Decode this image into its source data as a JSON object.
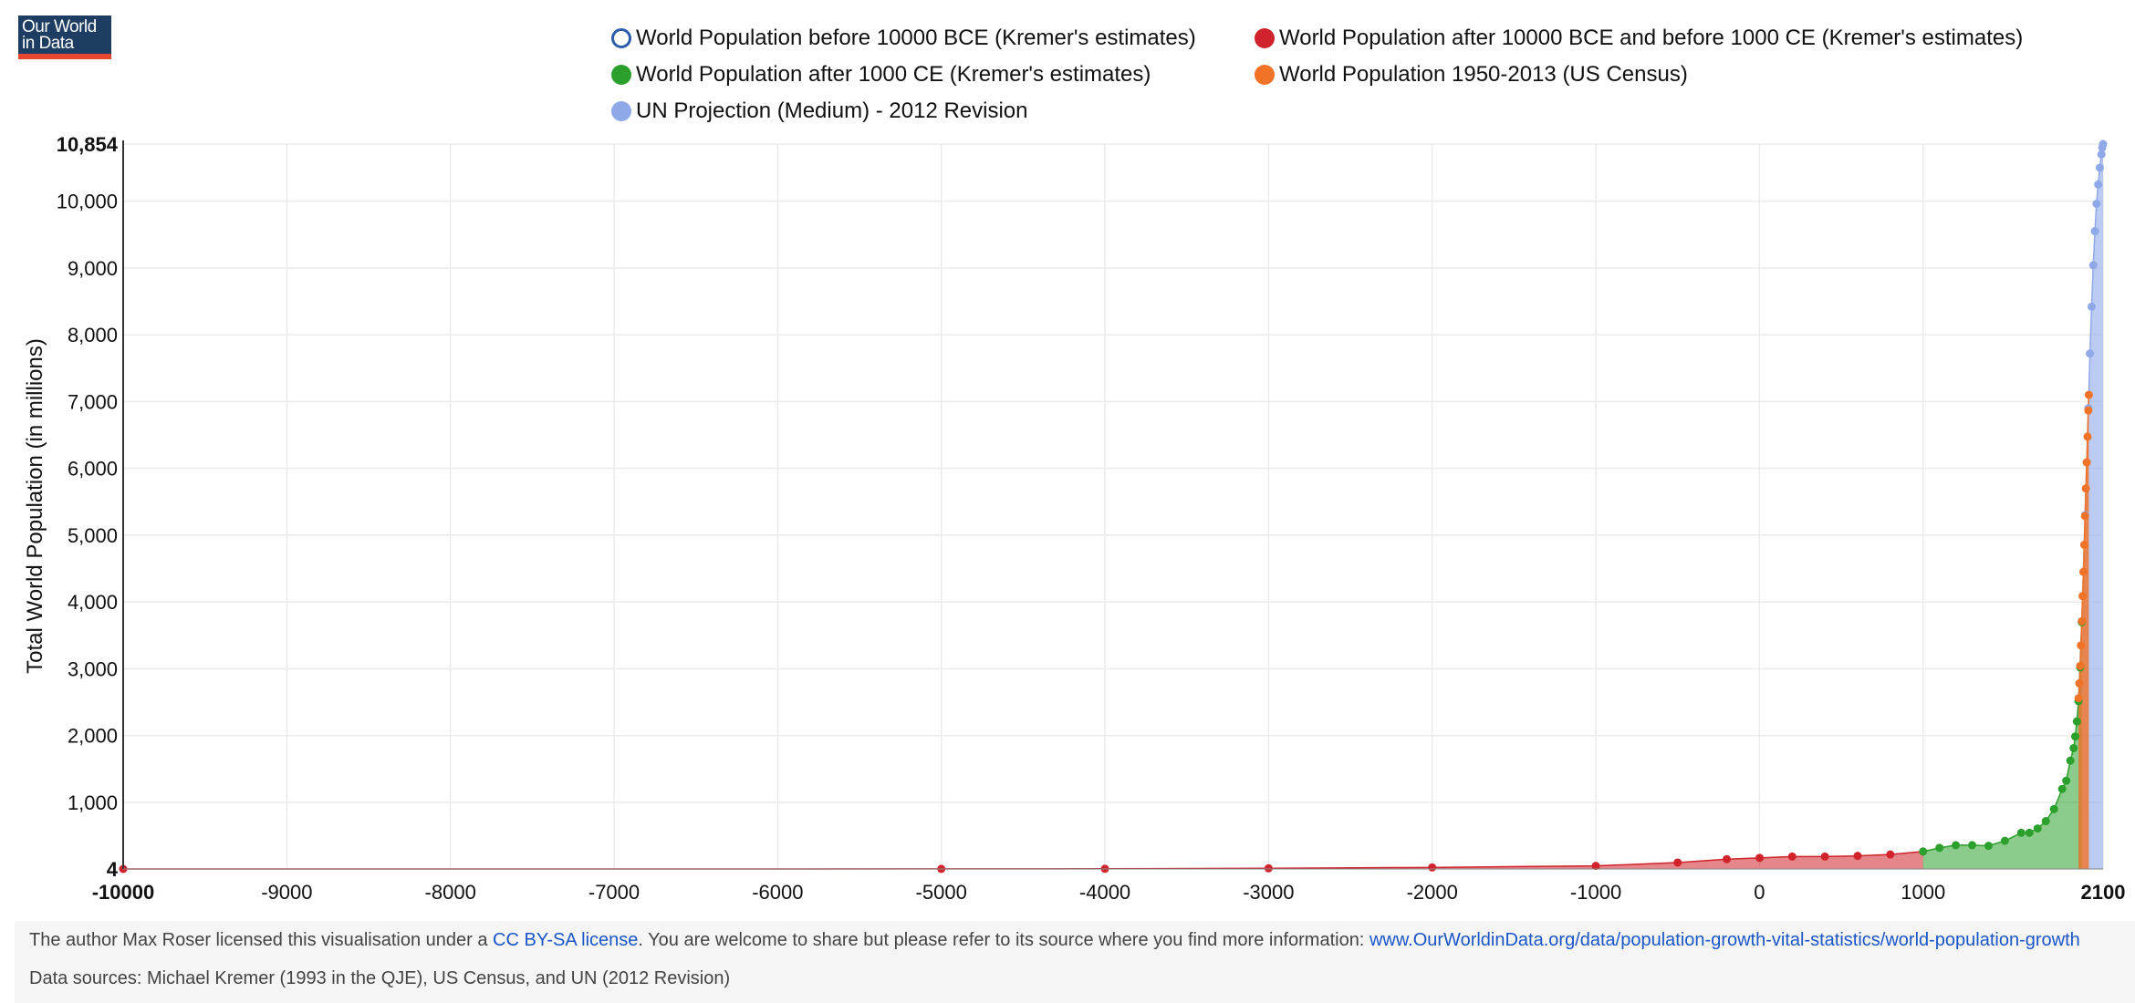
{
  "logo": {
    "line1": "Our World",
    "line2": "in Data"
  },
  "legend": [
    {
      "label": "World Population before 10000 BCE (Kremer's estimates)",
      "color": "#2b5cab",
      "style": "hollow"
    },
    {
      "label": "World Population after 10000 BCE and before 1000 CE (Kremer's estimates)",
      "color": "#d0232b",
      "style": "filled"
    },
    {
      "label": "World Population after 1000 CE (Kremer's estimates)",
      "color": "#2ca02c",
      "style": "filled"
    },
    {
      "label": "World Population 1950-2013 (US Census)",
      "color": "#f07328",
      "style": "filled"
    },
    {
      "label": "UN Projection (Medium) - 2012 Revision",
      "color": "#8fa8e8",
      "style": "filled"
    }
  ],
  "chart_data": {
    "type": "area",
    "ylabel": "Total World Population (in millions)",
    "xlim": [
      -10000,
      2100
    ],
    "ylim": [
      4,
      10854
    ],
    "x_ticks": [
      "-10000",
      "-9000",
      "-8000",
      "-7000",
      "-6000",
      "-5000",
      "-4000",
      "-3000",
      "-2000",
      "-1000",
      "0",
      "1000",
      "2100"
    ],
    "y_ticks": [
      "4",
      "1,000",
      "2,000",
      "3,000",
      "4,000",
      "5,000",
      "6,000",
      "7,000",
      "8,000",
      "9,000",
      "10,000",
      "10,854"
    ],
    "grid": true,
    "series": [
      {
        "name": "World Population after 10000 BCE and before 1000 CE (Kremer's estimates)",
        "color": "#d0232b",
        "x": [
          -10000,
          -5000,
          -4000,
          -3000,
          -2000,
          -1000,
          -500,
          -200,
          1,
          200,
          400,
          600,
          800,
          1000
        ],
        "y": [
          4,
          5,
          7,
          14,
          27,
          50,
          100,
          150,
          170,
          190,
          190,
          200,
          220,
          265
        ]
      },
      {
        "name": "World Population after 1000 CE (Kremer's estimates)",
        "color": "#2ca02c",
        "x": [
          1000,
          1100,
          1200,
          1300,
          1400,
          1500,
          1600,
          1650,
          1700,
          1750,
          1800,
          1850,
          1875,
          1900,
          1920,
          1930,
          1940,
          1950,
          1960,
          1970
        ],
        "y": [
          265,
          320,
          360,
          360,
          350,
          425,
          545,
          545,
          610,
          720,
          900,
          1200,
          1325,
          1625,
          1813,
          1987,
          2213,
          2516,
          3020,
          3698
        ]
      },
      {
        "name": "World Population 1950-2013 (US Census)",
        "color": "#f07328",
        "x": [
          1950,
          1955,
          1960,
          1965,
          1970,
          1975,
          1980,
          1985,
          1990,
          1995,
          2000,
          2005,
          2010,
          2013
        ],
        "y": [
          2558,
          2782,
          3043,
          3350,
          3712,
          4089,
          4451,
          4855,
          5287,
          5700,
          6090,
          6474,
          6867,
          7100
        ]
      },
      {
        "name": "UN Projection (Medium) - 2012 Revision",
        "color": "#8fa8e8",
        "x": [
          1950,
          1970,
          1990,
          2010,
          2020,
          2030,
          2040,
          2050,
          2060,
          2070,
          2080,
          2090,
          2095,
          2100
        ],
        "y": [
          2530,
          3700,
          5300,
          6900,
          7720,
          8420,
          9040,
          9550,
          9960,
          10250,
          10500,
          10700,
          10800,
          10854
        ]
      }
    ]
  },
  "footer": {
    "line1_prefix": "The author Max Roser licensed this visualisation under a ",
    "license_link": "CC BY-SA license",
    "line1_middle": ". You are welcome to share but please refer to its source where you find more information: ",
    "source_link": "www.OurWorldinData.org/data/population-growth-vital-statistics/world-population-growth",
    "line2": "Data sources: Michael Kremer (1993 in the QJE), US Census, and UN (2012 Revision)"
  }
}
